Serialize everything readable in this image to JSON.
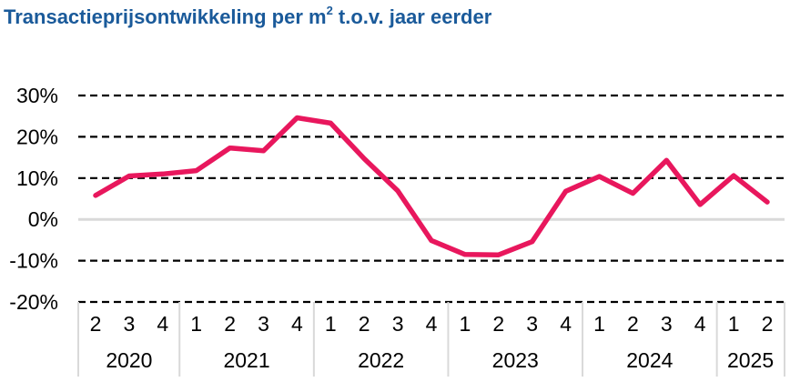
{
  "chart_data": {
    "type": "line",
    "title_main": "Transactieprijsontwikkeling per m",
    "title_sup": "2",
    "title_rest": " t.o.v. jaar eerder",
    "x": [
      "2",
      "3",
      "4",
      "1",
      "2",
      "3",
      "4",
      "1",
      "2",
      "3",
      "4",
      "1",
      "2",
      "3",
      "4",
      "1",
      "2",
      "3",
      "4",
      "1",
      "2"
    ],
    "year_groups": [
      {
        "label": "2020",
        "count": 3
      },
      {
        "label": "2021",
        "count": 4
      },
      {
        "label": "2022",
        "count": 4
      },
      {
        "label": "2023",
        "count": 4
      },
      {
        "label": "2024",
        "count": 4
      },
      {
        "label": "2025",
        "count": 2
      }
    ],
    "series": [
      {
        "values": [
          5.8,
          10.5,
          11.0,
          11.8,
          17.3,
          16.6,
          24.6,
          23.3,
          14.7,
          6.9,
          -5.1,
          -8.5,
          -8.6,
          -5.4,
          6.8,
          10.4,
          6.3,
          14.3,
          3.6,
          10.6,
          4.2
        ],
        "color": "#e8175d"
      }
    ],
    "yticks": [
      {
        "value": 30,
        "label": "30%"
      },
      {
        "value": 20,
        "label": "20%"
      },
      {
        "value": 10,
        "label": "10%"
      },
      {
        "value": 0,
        "label": "0%"
      },
      {
        "value": -10,
        "label": "-10%"
      },
      {
        "value": -20,
        "label": "-20%"
      }
    ],
    "ylim": [
      -20,
      30
    ],
    "grid": "dashed",
    "zero_line_color": "#d9d9d9",
    "xlabel": "",
    "ylabel": ""
  }
}
